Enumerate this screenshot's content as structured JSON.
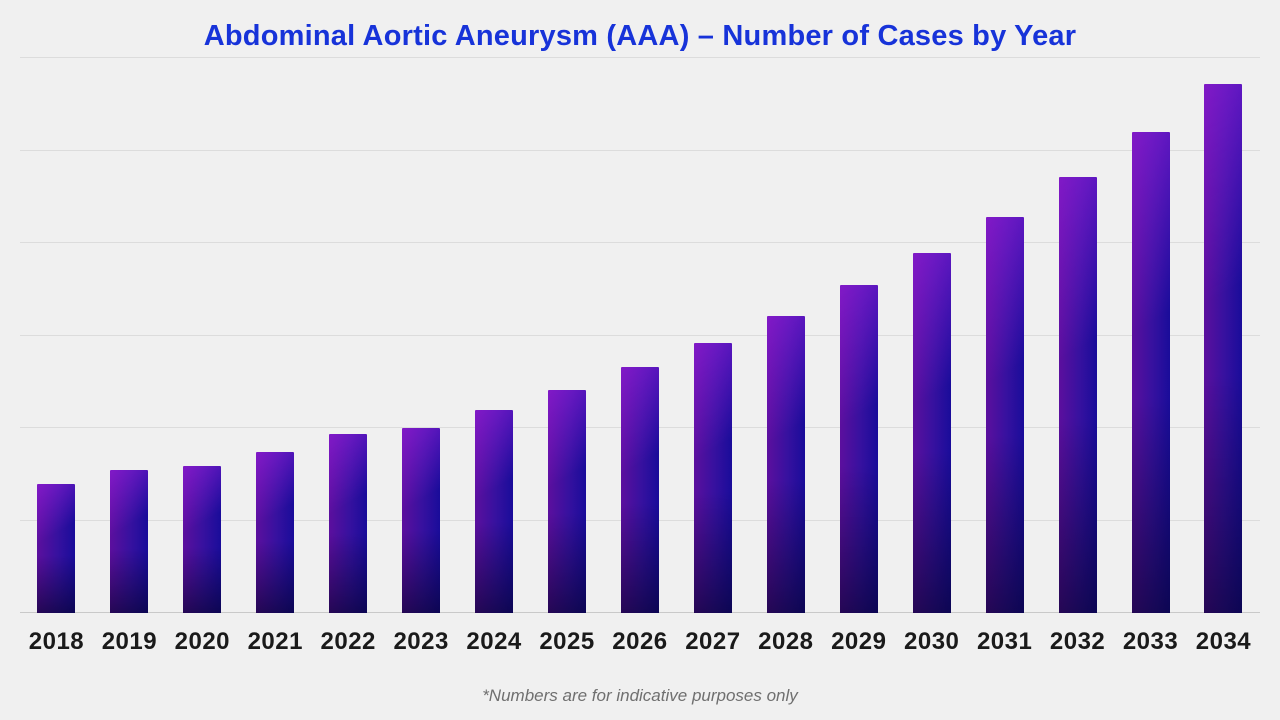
{
  "page": {
    "background_color": "#f0f0f0",
    "footnote": "*Numbers are for indicative purposes only"
  },
  "colors": {
    "title": "#1733d9",
    "axis_label": "#1a1a1a",
    "footnote": "#6f6f6f",
    "gridline": "#dcdcdc",
    "baseline": "#c9c9c9",
    "bar_highlight": "#9a20e2",
    "bar_left_purple": "#5c0f9e",
    "bar_mid_indigo": "#36119f",
    "bar_right_blue": "#190c9a",
    "bar_bottom_shade": "#040228"
  },
  "chart_data": {
    "type": "bar",
    "title": "Abdominal Aortic Aneurysm (AAA) – Number of Cases by Year",
    "xlabel": "",
    "ylabel": "",
    "categories": [
      "2018",
      "2019",
      "2020",
      "2021",
      "2022",
      "2023",
      "2024",
      "2025",
      "2026",
      "2027",
      "2028",
      "2029",
      "2030",
      "2031",
      "2032",
      "2033",
      "2034"
    ],
    "values": [
      1.39,
      1.55,
      1.59,
      1.74,
      1.94,
      2.0,
      2.19,
      2.41,
      2.66,
      2.92,
      3.21,
      3.55,
      3.89,
      4.28,
      4.71,
      5.2,
      5.72
    ],
    "value_note": "No y-axis tick labels are shown in the chart; values are relative units where 1.0 equals one horizontal gridline interval",
    "ylim": [
      0,
      6
    ],
    "gridline_intervals": 6,
    "grid": "horizontal gridlines on, including top rule and bottom baseline",
    "legend_position": "none",
    "footnote": "*Numbers are for indicative purposes only"
  }
}
